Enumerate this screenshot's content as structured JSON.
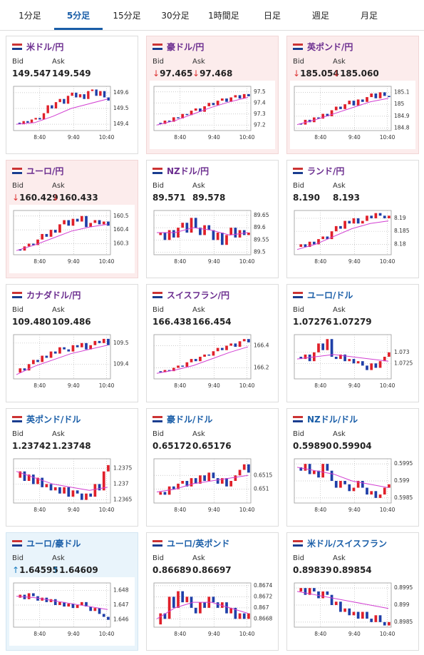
{
  "tabs": [
    "1分足",
    "5分足",
    "15分足",
    "30分足",
    "1時間足",
    "日足",
    "週足",
    "月足"
  ],
  "active_tab": 1,
  "panels": [
    {
      "name": "米ドル/円",
      "color": "#6b2d8f",
      "bid_label": "Bid",
      "ask_label": "Ask",
      "bid": "149.547",
      "ask": "149.549",
      "ylim": [
        149.36,
        149.64
      ],
      "yticks": [
        149.4,
        149.5,
        149.6
      ],
      "xticks": [
        "8:40",
        "9:40",
        "10:40"
      ],
      "closes": [
        149.41,
        149.4,
        149.42,
        149.41,
        149.43,
        149.44,
        149.43,
        149.47,
        149.52,
        149.5,
        149.54,
        149.56,
        149.53,
        149.58,
        149.6,
        149.57,
        149.59,
        149.56,
        149.61,
        149.62,
        149.58,
        149.61,
        149.57,
        149.55
      ],
      "ma": [
        149.4,
        149.41,
        149.45,
        149.5,
        149.53,
        149.56
      ]
    },
    {
      "name": "豪ドル/円",
      "color": "#6b2d8f",
      "trend": "down",
      "arrow": "↓",
      "bid_label": "Bid",
      "ask_label": "Ask",
      "bid": "97.465",
      "ask": "97.468",
      "ylim": [
        97.15,
        97.55
      ],
      "yticks": [
        97.2,
        97.3,
        97.4,
        97.5
      ],
      "xticks": [
        "8:40",
        "9:40",
        "10:40"
      ],
      "closes": [
        97.22,
        97.21,
        97.24,
        97.23,
        97.27,
        97.26,
        97.3,
        97.29,
        97.33,
        97.35,
        97.32,
        97.37,
        97.4,
        97.38,
        97.42,
        97.44,
        97.41,
        97.45,
        97.47,
        97.44,
        97.48,
        97.46
      ],
      "ma": [
        97.2,
        97.24,
        97.3,
        97.36,
        97.41,
        97.45
      ]
    },
    {
      "name": "英ポンド/円",
      "color": "#6b2d8f",
      "trend": "down",
      "arrow": "↓",
      "bid_label": "Bid",
      "ask_label": "Ask",
      "bid": "185.054",
      "ask": "185.060",
      "ylim": [
        184.78,
        185.15
      ],
      "yticks": [
        184.8,
        184.9,
        185,
        185.1
      ],
      "xticks": [
        "8:40",
        "9:40",
        "10:40"
      ],
      "closes": [
        184.84,
        184.83,
        184.87,
        184.85,
        184.89,
        184.88,
        184.92,
        184.9,
        184.95,
        184.98,
        184.96,
        185.0,
        185.03,
        184.99,
        185.04,
        185.02,
        185.06,
        185.09,
        185.05,
        185.1,
        185.07,
        185.06
      ],
      "ma": [
        184.83,
        184.87,
        184.92,
        184.97,
        185.02,
        185.05
      ]
    },
    {
      "name": "ユーロ/円",
      "color": "#6b2d8f",
      "trend": "down",
      "arrow": "↓",
      "bid_label": "Bid",
      "ask_label": "Ask",
      "bid": "160.429",
      "ask": "160.433",
      "ylim": [
        160.22,
        160.54
      ],
      "yticks": [
        160.3,
        160.4,
        160.5
      ],
      "xticks": [
        "8:40",
        "9:40",
        "10:40"
      ],
      "closes": [
        160.26,
        160.25,
        160.28,
        160.3,
        160.29,
        160.33,
        160.37,
        160.35,
        160.4,
        160.38,
        160.44,
        160.47,
        160.43,
        160.48,
        160.46,
        160.5,
        160.42,
        160.45,
        160.47,
        160.44,
        160.46,
        160.43
      ],
      "ma": [
        160.25,
        160.29,
        160.34,
        160.39,
        160.42,
        160.44
      ]
    },
    {
      "name": "NZドル/円",
      "color": "#6b2d8f",
      "bid_label": "Bid",
      "ask_label": "Ask",
      "bid": "89.571",
      "ask": "89.578",
      "ylim": [
        89.49,
        89.67
      ],
      "yticks": [
        89.5,
        89.55,
        89.6,
        89.65
      ],
      "xticks": [
        "8:40",
        "9:40",
        "10:40"
      ],
      "closes": [
        89.57,
        89.58,
        89.55,
        89.59,
        89.56,
        89.6,
        89.62,
        89.58,
        89.64,
        89.6,
        89.57,
        89.61,
        89.59,
        89.55,
        89.58,
        89.53,
        89.57,
        89.6,
        89.56,
        89.59,
        89.57,
        89.58
      ],
      "ma": [
        89.58,
        89.58,
        89.6,
        89.59,
        89.57,
        89.58
      ]
    },
    {
      "name": "ランド/円",
      "color": "#6b2d8f",
      "bid_label": "Bid",
      "ask_label": "Ask",
      "bid": "8.190",
      "ask": "8.193",
      "ylim": [
        8.176,
        8.193
      ],
      "yticks": [
        8.18,
        8.185,
        8.19
      ],
      "xticks": [
        "8:40",
        "9:40",
        "10:40"
      ],
      "closes": [
        8.179,
        8.18,
        8.179,
        8.181,
        8.18,
        8.182,
        8.183,
        8.182,
        8.185,
        8.187,
        8.186,
        8.189,
        8.188,
        8.19,
        8.188,
        8.189,
        8.191,
        8.19,
        8.192,
        8.191,
        8.19,
        8.191
      ],
      "ma": [
        8.178,
        8.18,
        8.183,
        8.186,
        8.188,
        8.189
      ]
    },
    {
      "name": "カナダドル/円",
      "color": "#6b2d8f",
      "bid_label": "Bid",
      "ask_label": "Ask",
      "bid": "109.480",
      "ask": "109.486",
      "ylim": [
        109.33,
        109.54
      ],
      "yticks": [
        109.4,
        109.5
      ],
      "xticks": [
        "8:40",
        "9:40",
        "10:40"
      ],
      "closes": [
        109.36,
        109.38,
        109.37,
        109.4,
        109.42,
        109.41,
        109.44,
        109.43,
        109.46,
        109.45,
        109.48,
        109.47,
        109.46,
        109.49,
        109.48,
        109.5,
        109.47,
        109.49,
        109.51,
        109.5,
        109.52,
        109.49
      ],
      "ma": [
        109.35,
        109.39,
        109.42,
        109.45,
        109.47,
        109.49
      ]
    },
    {
      "name": "スイスフラン/円",
      "color": "#6b2d8f",
      "bid_label": "Bid",
      "ask_label": "Ask",
      "bid": "166.438",
      "ask": "166.454",
      "ylim": [
        166.1,
        166.5
      ],
      "yticks": [
        166.2,
        166.4
      ],
      "xticks": [
        "8:40",
        "9:40",
        "10:40"
      ],
      "closes": [
        166.17,
        166.16,
        166.18,
        166.17,
        166.2,
        166.22,
        166.21,
        166.25,
        166.28,
        166.26,
        166.3,
        166.32,
        166.31,
        166.35,
        166.38,
        166.36,
        166.4,
        166.42,
        166.39,
        166.44,
        166.46,
        166.43
      ],
      "ma": [
        166.15,
        166.18,
        166.22,
        166.28,
        166.34,
        166.39
      ]
    },
    {
      "name": "ユーロ/ドル",
      "color": "#1a5ea8",
      "bid_label": "Bid",
      "ask_label": "Ask",
      "bid": "1.07276",
      "ask": "1.07279",
      "ylim": [
        1.0718,
        1.0738
      ],
      "yticks": [
        1.0725,
        1.073
      ],
      "xticks": [
        "8:40",
        "9:40",
        "10:40"
      ],
      "closes": [
        1.0728,
        1.0727,
        1.0729,
        1.0726,
        1.073,
        1.0734,
        1.0731,
        1.0736,
        1.0728,
        1.0727,
        1.0729,
        1.0726,
        1.0727,
        1.0725,
        1.0726,
        1.0724,
        1.0722,
        1.0725,
        1.0723,
        1.0726,
        1.0728,
        1.073
      ],
      "ma": [
        1.0727,
        1.0728,
        1.0729,
        1.0728,
        1.0727,
        1.0726
      ]
    },
    {
      "name": "英ポンド/ドル",
      "color": "#1a5ea8",
      "bid_label": "Bid",
      "ask_label": "Ask",
      "bid": "1.23742",
      "ask": "1.23748",
      "ylim": [
        1.2364,
        1.2378
      ],
      "yticks": [
        1.2365,
        1.237,
        1.2375
      ],
      "xticks": [
        "8:40",
        "9:40",
        "10:40"
      ],
      "closes": [
        1.2372,
        1.2374,
        1.2371,
        1.2373,
        1.237,
        1.2372,
        1.2369,
        1.237,
        1.2368,
        1.2369,
        1.2367,
        1.2369,
        1.2366,
        1.2368,
        1.2367,
        1.2365,
        1.2367,
        1.2366,
        1.237,
        1.2368,
        1.2374,
        1.2376
      ],
      "ma": [
        1.2374,
        1.2372,
        1.237,
        1.2369,
        1.2368,
        1.2369
      ]
    },
    {
      "name": "豪ドル/ドル",
      "color": "#1a5ea8",
      "bid_label": "Bid",
      "ask_label": "Ask",
      "bid": "0.65172",
      "ask": "0.65176",
      "ylim": [
        0.6505,
        0.6521
      ],
      "yticks": [
        0.651,
        0.6515
      ],
      "xticks": [
        "8:40",
        "9:40",
        "10:40"
      ],
      "closes": [
        0.6508,
        0.6509,
        0.6508,
        0.6511,
        0.651,
        0.6512,
        0.6513,
        0.6511,
        0.6514,
        0.6512,
        0.6515,
        0.6513,
        0.6516,
        0.6514,
        0.6512,
        0.6514,
        0.6511,
        0.6513,
        0.6515,
        0.6517,
        0.6519,
        0.6516
      ],
      "ma": [
        0.6509,
        0.651,
        0.6512,
        0.6513,
        0.6514,
        0.6515
      ]
    },
    {
      "name": "NZドル/ドル",
      "color": "#1a5ea8",
      "bid_label": "Bid",
      "ask_label": "Ask",
      "bid": "0.59890",
      "ask": "0.59904",
      "ylim": [
        0.59835,
        0.59965
      ],
      "yticks": [
        0.5985,
        0.599,
        0.5995
      ],
      "xticks": [
        "8:40",
        "9:40",
        "10:40"
      ],
      "closes": [
        0.5994,
        0.5993,
        0.5995,
        0.5992,
        0.5993,
        0.5991,
        0.5995,
        0.5993,
        0.599,
        0.5988,
        0.599,
        0.5989,
        0.5987,
        0.5988,
        0.599,
        0.5988,
        0.5986,
        0.5987,
        0.5985,
        0.5986,
        0.5988,
        0.5989
      ],
      "ma": [
        0.5994,
        0.5993,
        0.5992,
        0.599,
        0.5989,
        0.5988
      ]
    },
    {
      "name": "ユーロ/豪ドル",
      "color": "#1a5ea8",
      "trend": "up",
      "arrow": "↑",
      "bid_label": "Bid",
      "ask_label": "Ask",
      "bid": "1.64595",
      "ask": "1.64609",
      "ylim": [
        1.6455,
        1.6485
      ],
      "yticks": [
        1.646,
        1.647,
        1.648
      ],
      "xticks": [
        "8:40",
        "9:40",
        "10:40"
      ],
      "closes": [
        1.6475,
        1.6477,
        1.6474,
        1.6478,
        1.6476,
        1.6473,
        1.6475,
        1.6472,
        1.6474,
        1.647,
        1.6472,
        1.6469,
        1.6471,
        1.6468,
        1.647,
        1.6472,
        1.6469,
        1.6466,
        1.6468,
        1.6464,
        1.6462,
        1.646
      ],
      "ma": [
        1.6476,
        1.6475,
        1.6473,
        1.6471,
        1.6469,
        1.6467
      ]
    },
    {
      "name": "ユーロ/英ポンド",
      "color": "#1a5ea8",
      "bid_label": "Bid",
      "ask_label": "Ask",
      "bid": "0.86689",
      "ask": "0.86697",
      "ylim": [
        0.86665,
        0.86745
      ],
      "yticks": [
        0.8668,
        0.867,
        0.8672,
        0.8674
      ],
      "xticks": [
        "8:40",
        "9:40",
        "10:40"
      ],
      "closes": [
        0.8667,
        0.8669,
        0.8668,
        0.8672,
        0.867,
        0.8673,
        0.8671,
        0.8672,
        0.867,
        0.8669,
        0.8671,
        0.867,
        0.8672,
        0.8671,
        0.867,
        0.8671,
        0.8669,
        0.867,
        0.8668,
        0.8669,
        0.8668,
        0.8669
      ],
      "ma": [
        0.8668,
        0.867,
        0.8671,
        0.8671,
        0.867,
        0.8669
      ]
    },
    {
      "name": "米ドル/スイスフラン",
      "color": "#1a5ea8",
      "bid_label": "Bid",
      "ask_label": "Ask",
      "bid": "0.89839",
      "ask": "0.89854",
      "ylim": [
        0.89835,
        0.89965
      ],
      "yticks": [
        0.8985,
        0.899,
        0.8995
      ],
      "xticks": [
        "8:40",
        "9:40",
        "10:40"
      ],
      "closes": [
        0.8994,
        0.8995,
        0.8993,
        0.8995,
        0.8994,
        0.8992,
        0.8994,
        0.8993,
        0.899,
        0.8991,
        0.8988,
        0.8989,
        0.8987,
        0.8988,
        0.8986,
        0.8988,
        0.8986,
        0.8985,
        0.8987,
        0.8985,
        0.8984,
        0.8985
      ],
      "ma": [
        0.8994,
        0.8993,
        0.8992,
        0.8991,
        0.899,
        0.8989
      ]
    }
  ]
}
